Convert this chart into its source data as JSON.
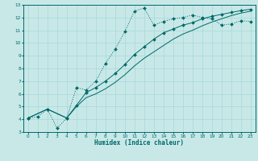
{
  "xlabel": "Humidex (Indice chaleur)",
  "bg_color": "#c8e8e8",
  "grid_color": "#a8d8d8",
  "line_color": "#006868",
  "spine_color": "#006868",
  "xlim": [
    -0.5,
    23.5
  ],
  "ylim": [
    3,
    13
  ],
  "xticks": [
    0,
    1,
    2,
    3,
    4,
    5,
    6,
    7,
    8,
    9,
    10,
    11,
    12,
    13,
    14,
    15,
    16,
    17,
    18,
    19,
    20,
    21,
    22,
    23
  ],
  "yticks": [
    3,
    4,
    5,
    6,
    7,
    8,
    9,
    10,
    11,
    12,
    13
  ],
  "curve1_x": [
    0,
    1,
    2,
    3,
    4,
    5,
    6,
    7,
    8,
    9,
    10,
    11,
    12,
    13,
    14,
    15,
    16,
    17,
    18,
    19,
    20,
    21,
    22,
    23
  ],
  "curve1_y": [
    4.1,
    4.2,
    4.8,
    3.3,
    4.1,
    6.5,
    6.3,
    7.0,
    8.4,
    9.5,
    10.9,
    12.5,
    12.75,
    11.4,
    11.7,
    11.9,
    12.0,
    12.2,
    12.0,
    11.9,
    11.4,
    11.5,
    11.75,
    11.7
  ],
  "curve2_x": [
    0,
    2,
    4,
    5,
    6,
    7,
    8,
    9,
    10,
    11,
    12,
    13,
    14,
    15,
    16,
    17,
    18,
    19,
    20,
    21,
    22,
    23
  ],
  "curve2_y": [
    4.1,
    4.8,
    4.1,
    5.1,
    6.1,
    6.5,
    7.0,
    7.6,
    8.3,
    9.1,
    9.7,
    10.3,
    10.8,
    11.1,
    11.4,
    11.6,
    11.9,
    12.1,
    12.25,
    12.4,
    12.55,
    12.65
  ],
  "curve3_x": [
    0,
    2,
    4,
    5,
    6,
    7,
    8,
    9,
    10,
    11,
    12,
    13,
    14,
    15,
    16,
    17,
    18,
    19,
    20,
    21,
    22,
    23
  ],
  "curve3_y": [
    4.1,
    4.8,
    4.1,
    5.0,
    5.7,
    6.0,
    6.4,
    6.9,
    7.5,
    8.2,
    8.8,
    9.3,
    9.8,
    10.3,
    10.7,
    11.0,
    11.35,
    11.65,
    11.9,
    12.15,
    12.35,
    12.5
  ]
}
